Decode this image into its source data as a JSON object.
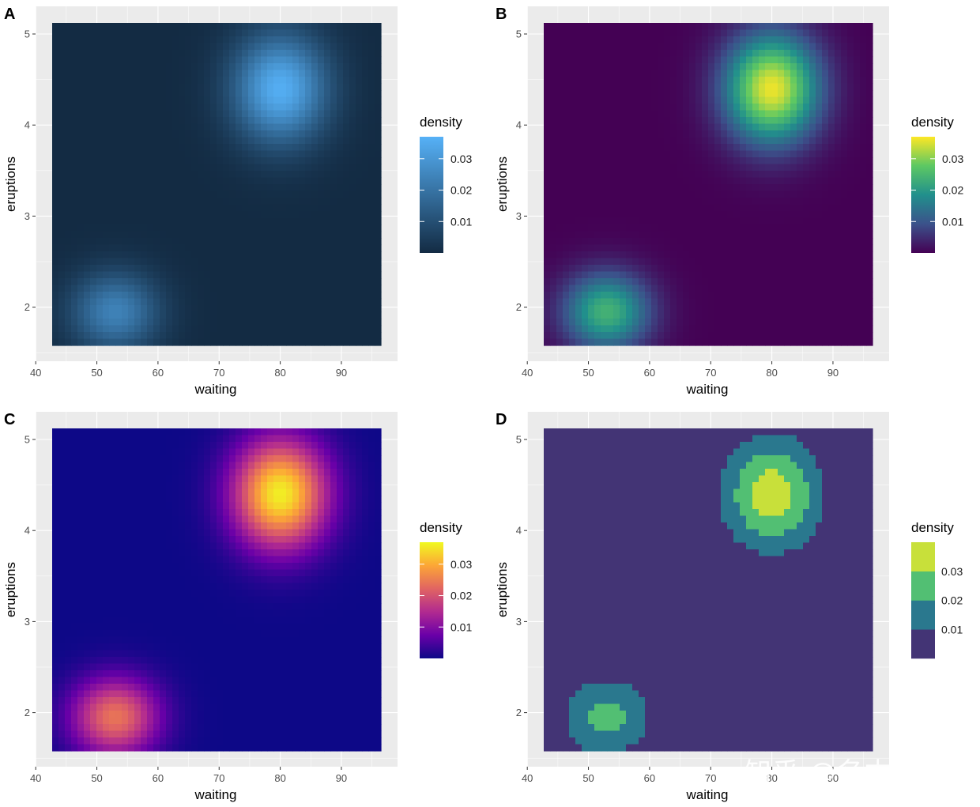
{
  "watermark": "知乎 @名本无名",
  "chart_data": [
    {
      "panel": "A",
      "type": "heatmap",
      "fill": "continuous",
      "palette": "default-blue",
      "colors": [
        "#132B43",
        "#56B1F7"
      ],
      "xlabel": "waiting",
      "ylabel": "eruptions",
      "xlim": [
        42.5,
        96.5
      ],
      "ylim": [
        1.55,
        5.15
      ],
      "xticks": [
        40,
        50,
        60,
        70,
        80,
        90
      ],
      "yticks": [
        2,
        3,
        4,
        5
      ],
      "legend": {
        "title": "density",
        "breaks": [
          "0.01",
          "0.02",
          "0.03"
        ],
        "range": [
          0,
          0.037
        ]
      },
      "density_peaks": [
        {
          "waiting": 80,
          "eruptions": 4.4,
          "density": 0.036
        },
        {
          "waiting": 53,
          "eruptions": 1.95,
          "density": 0.024
        }
      ]
    },
    {
      "panel": "B",
      "type": "heatmap",
      "fill": "continuous",
      "palette": "viridis",
      "colors": [
        "#440154",
        "#3B528B",
        "#21908C",
        "#5DC863",
        "#FDE725"
      ],
      "xlabel": "waiting",
      "ylabel": "eruptions",
      "xlim": [
        42.5,
        96.5
      ],
      "ylim": [
        1.55,
        5.15
      ],
      "xticks": [
        40,
        50,
        60,
        70,
        80,
        90
      ],
      "yticks": [
        2,
        3,
        4,
        5
      ],
      "legend": {
        "title": "density",
        "breaks": [
          "0.01",
          "0.02",
          "0.03"
        ],
        "range": [
          0,
          0.037
        ]
      },
      "density_peaks": [
        {
          "waiting": 80,
          "eruptions": 4.4,
          "density": 0.036
        },
        {
          "waiting": 53,
          "eruptions": 1.95,
          "density": 0.024
        }
      ]
    },
    {
      "panel": "C",
      "type": "heatmap",
      "fill": "continuous",
      "palette": "plasma",
      "colors": [
        "#0D0887",
        "#6A00A8",
        "#B12A90",
        "#E16462",
        "#FCA636",
        "#F0F921"
      ],
      "xlabel": "waiting",
      "ylabel": "eruptions",
      "xlim": [
        42.5,
        96.5
      ],
      "ylim": [
        1.55,
        5.15
      ],
      "xticks": [
        40,
        50,
        60,
        70,
        80,
        90
      ],
      "yticks": [
        2,
        3,
        4,
        5
      ],
      "legend": {
        "title": "density",
        "breaks": [
          "0.01",
          "0.02",
          "0.03"
        ],
        "range": [
          0,
          0.037
        ]
      },
      "density_peaks": [
        {
          "waiting": 80,
          "eruptions": 4.4,
          "density": 0.036
        },
        {
          "waiting": 53,
          "eruptions": 1.95,
          "density": 0.024
        }
      ]
    },
    {
      "panel": "D",
      "type": "heatmap",
      "fill": "binned",
      "palette": "viridis-binned",
      "colors": [
        "#433475",
        "#2A788E",
        "#52BF73",
        "#C8E03A"
      ],
      "xlabel": "waiting",
      "ylabel": "eruptions",
      "xlim": [
        42.5,
        96.5
      ],
      "ylim": [
        1.55,
        5.15
      ],
      "xticks": [
        40,
        50,
        60,
        70,
        80,
        90
      ],
      "yticks": [
        2,
        3,
        4,
        5
      ],
      "legend": {
        "title": "density",
        "breaks": [
          "0.01",
          "0.02",
          "0.03"
        ],
        "bins": [
          0.01,
          0.02,
          0.03
        ]
      },
      "density_peaks": [
        {
          "waiting": 80,
          "eruptions": 4.4,
          "density": 0.036
        },
        {
          "waiting": 53,
          "eruptions": 1.95,
          "density": 0.024
        }
      ]
    }
  ]
}
